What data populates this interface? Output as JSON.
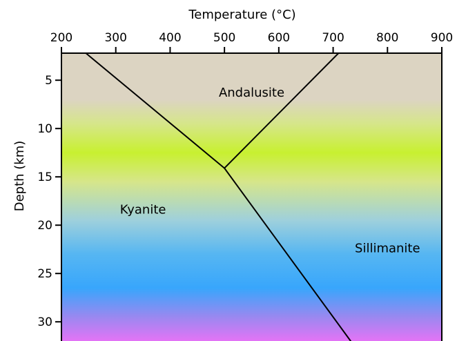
{
  "chart_data": {
    "type": "line",
    "title": "",
    "xlabel": "Temperature (°C)",
    "ylabel": "Depth (km)",
    "xlim": [
      200,
      900
    ],
    "ylim": [
      32.2,
      2.2
    ],
    "x_axis_position": "top",
    "x_ticks": [
      200,
      300,
      400,
      500,
      600,
      700,
      800,
      900
    ],
    "y_ticks": [
      5,
      10,
      15,
      20,
      25,
      30
    ],
    "grid": false,
    "legend": "none",
    "series": [
      {
        "x": [
          245,
          500
        ],
        "y": [
          2.2,
          14.1
        ]
      },
      {
        "x": [
          710,
          500
        ],
        "y": [
          2.2,
          14.1
        ]
      },
      {
        "x": [
          500,
          735
        ],
        "y": [
          14.1,
          32.2
        ]
      }
    ],
    "regions": [
      {
        "label": "Andalusite",
        "x": 550,
        "y": 6.7
      },
      {
        "label": "Kyanite",
        "x": 350,
        "y": 18.8
      },
      {
        "label": "Sillimanite",
        "x": 800,
        "y": 22.8
      }
    ],
    "background_gradient": {
      "stops": [
        {
          "depth": 2.2,
          "color": "#dcd4c2"
        },
        {
          "depth": 7.0,
          "color": "#dcd4c2"
        },
        {
          "depth": 9.5,
          "color": "#d6e68a"
        },
        {
          "depth": 12.5,
          "color": "#c8f030"
        },
        {
          "depth": 15.5,
          "color": "#d6e68a"
        },
        {
          "depth": 19.5,
          "color": "#9ed0dc"
        },
        {
          "depth": 23.0,
          "color": "#56b6f2"
        },
        {
          "depth": 26.5,
          "color": "#38a6fc"
        },
        {
          "depth": 29.5,
          "color": "#9a88f0"
        },
        {
          "depth": 32.2,
          "color": "#ea72f6"
        }
      ]
    }
  }
}
